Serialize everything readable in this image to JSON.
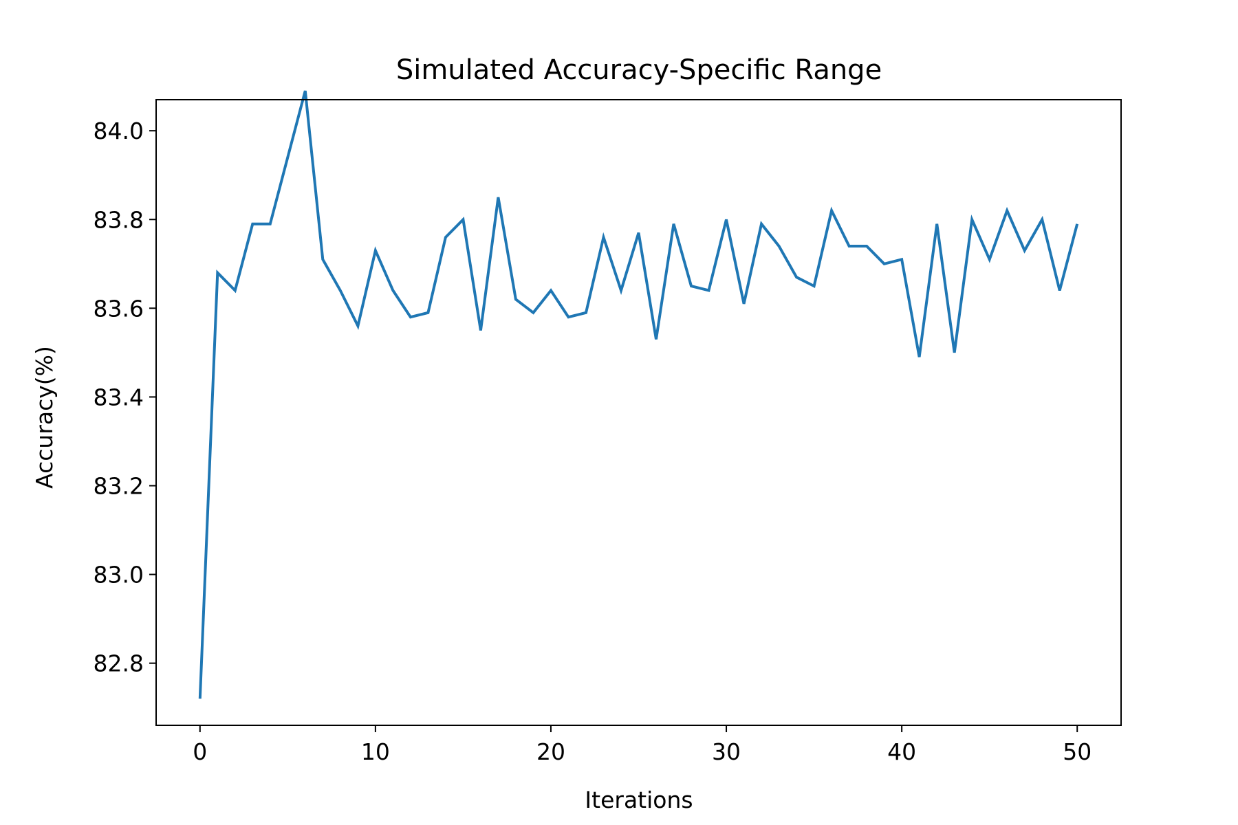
{
  "chart_data": {
    "type": "line",
    "title": "Simulated Accuracy-Specific Range",
    "xlabel": "Iterations",
    "ylabel": "Accuracy(%)",
    "xlim": [
      -2.5,
      52.5
    ],
    "ylim": [
      82.66,
      84.07
    ],
    "xticks": [
      0,
      10,
      20,
      30,
      40,
      50
    ],
    "yticks": [
      82.8,
      83.0,
      83.2,
      83.4,
      83.6,
      83.8,
      84.0
    ],
    "xtick_labels": [
      "0",
      "10",
      "20",
      "30",
      "40",
      "50"
    ],
    "ytick_labels": [
      "82.8",
      "83.0",
      "83.2",
      "83.4",
      "83.6",
      "83.8",
      "84.0"
    ],
    "grid": false,
    "legend": "none",
    "line_color": "#1f77b4",
    "series": [
      {
        "x": [
          0,
          1,
          2,
          3,
          4,
          5,
          6,
          7,
          8,
          9,
          10,
          11,
          12,
          13,
          14,
          15,
          16,
          17,
          18,
          19,
          20,
          21,
          22,
          23,
          24,
          25,
          26,
          27,
          28,
          29,
          30,
          31,
          32,
          33,
          34,
          35,
          36,
          37,
          38,
          39,
          40,
          41,
          42,
          43,
          44,
          45,
          46,
          47,
          48,
          49,
          50
        ],
        "values": [
          82.72,
          83.68,
          83.64,
          83.79,
          83.79,
          83.94,
          84.09,
          83.71,
          83.64,
          83.56,
          83.73,
          83.64,
          83.58,
          83.59,
          83.76,
          83.8,
          83.55,
          83.85,
          83.62,
          83.59,
          83.64,
          83.58,
          83.59,
          83.76,
          83.64,
          83.77,
          83.53,
          83.79,
          83.65,
          83.64,
          83.8,
          83.61,
          83.79,
          83.74,
          83.67,
          83.65,
          83.82,
          83.74,
          83.74,
          83.7,
          83.71,
          83.49,
          83.79,
          83.5,
          83.8,
          83.71,
          83.82,
          83.73,
          83.8,
          83.64,
          83.79
        ]
      }
    ]
  }
}
